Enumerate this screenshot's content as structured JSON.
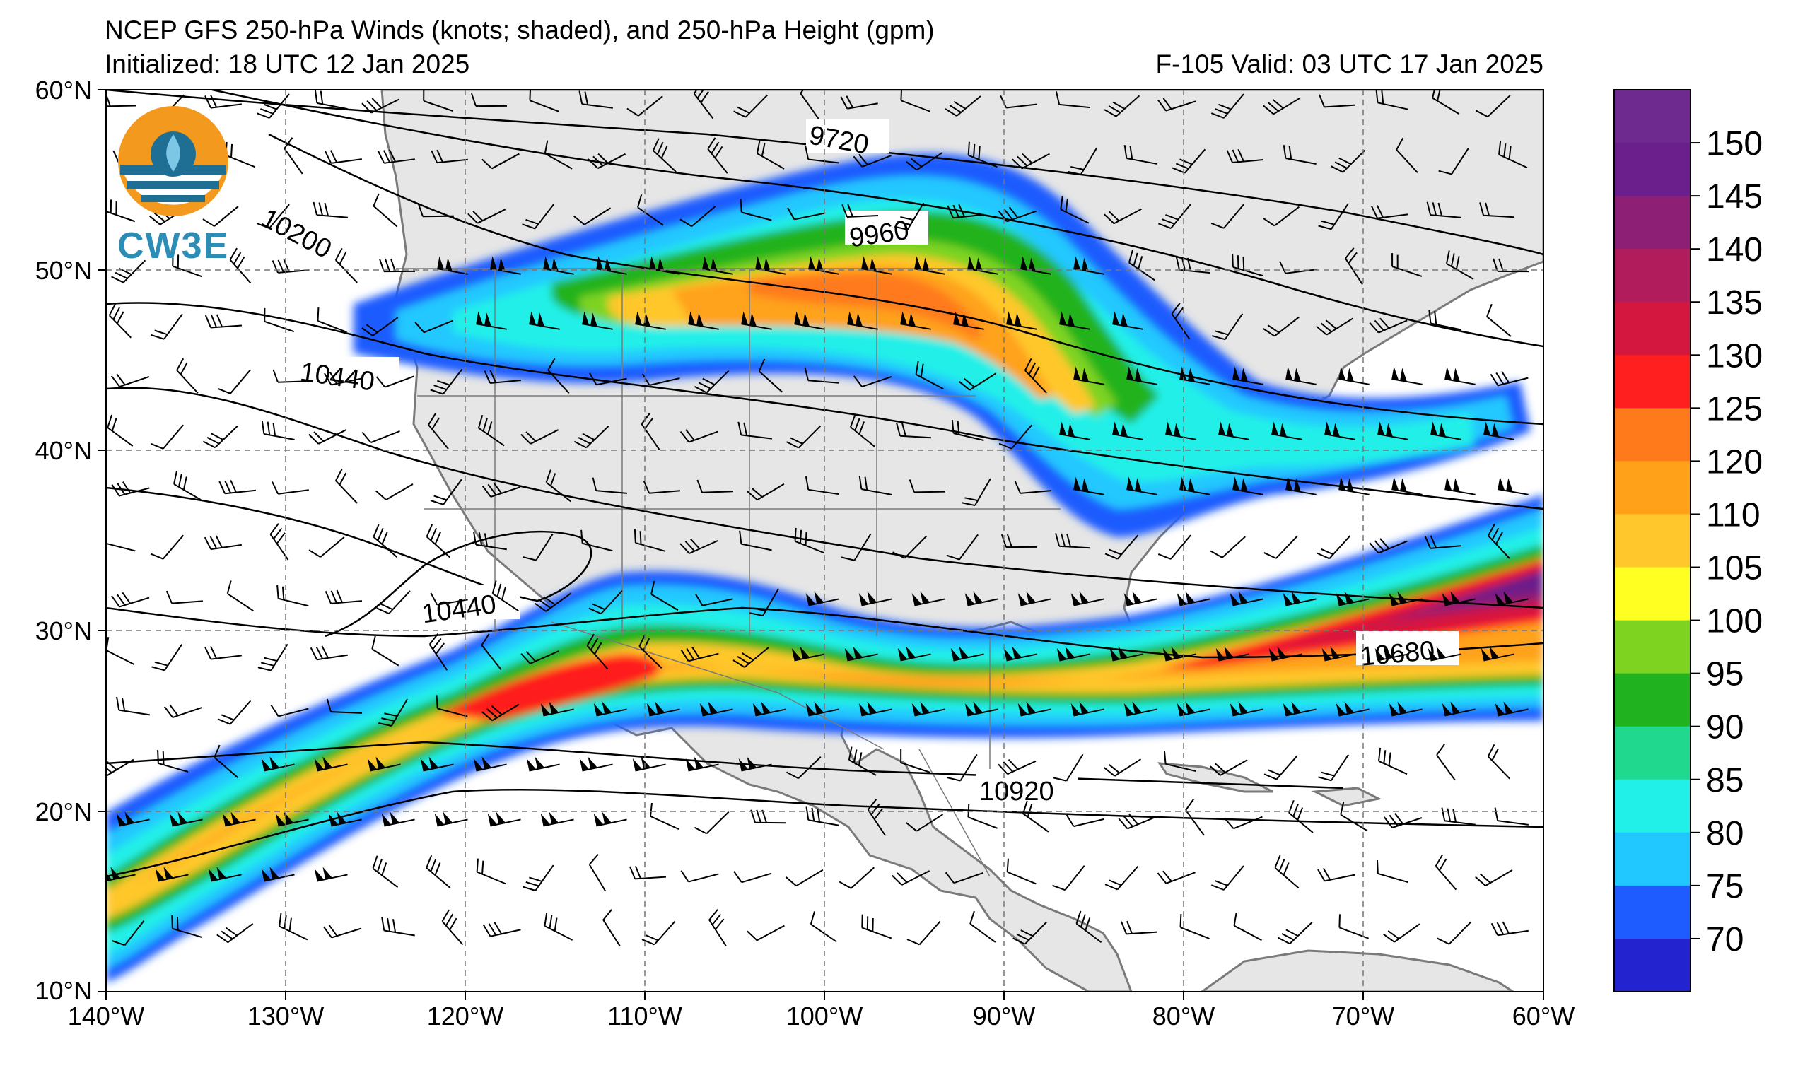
{
  "header": {
    "title": "NCEP GFS 250-hPa Winds (knots; shaded), and 250-hPa Height (gpm)",
    "init": "Initialized: 18 UTC 12 Jan 2025",
    "valid": "F-105  Valid: 03 UTC 17 Jan 2025"
  },
  "logo": {
    "text": "CW3E",
    "icon": "cw3e-logo-icon"
  },
  "axes": {
    "lat_labels": [
      "60°N",
      "50°N",
      "40°N",
      "30°N",
      "20°N",
      "10°N"
    ],
    "lon_labels": [
      "140°W",
      "130°W",
      "120°W",
      "110°W",
      "100°W",
      "90°W",
      "80°W",
      "70°W",
      "60°W"
    ],
    "lat_range": [
      10,
      60
    ],
    "lon_range": [
      -140,
      -60
    ],
    "grid": "dashed"
  },
  "contour_labels": {
    "c9720": "9720",
    "c9960": "9960",
    "c10200": "10200",
    "c10440a": "10440",
    "c10440b": "10440",
    "c10680": "10680",
    "c10920": "10920"
  },
  "colorbar": {
    "ticks": [
      "150",
      "145",
      "140",
      "135",
      "130",
      "125",
      "120",
      "110",
      "105",
      "100",
      "95",
      "90",
      "85",
      "80",
      "75",
      "70"
    ],
    "colors": [
      "#6a1f8c",
      "#8d1f74",
      "#b01c5c",
      "#d4173f",
      "#ff1f1f",
      "#ff7a1a",
      "#ffa21a",
      "#ffc72c",
      "#ffff22",
      "#7ed321",
      "#21b31f",
      "#21d98e",
      "#21f0e8",
      "#21c8ff",
      "#1f5cff",
      "#2323d0"
    ]
  },
  "colors": {
    "land": "#e6e6e6",
    "ocean": "#ffffff",
    "coast": "#7a7a7a",
    "contour": "#000000"
  }
}
